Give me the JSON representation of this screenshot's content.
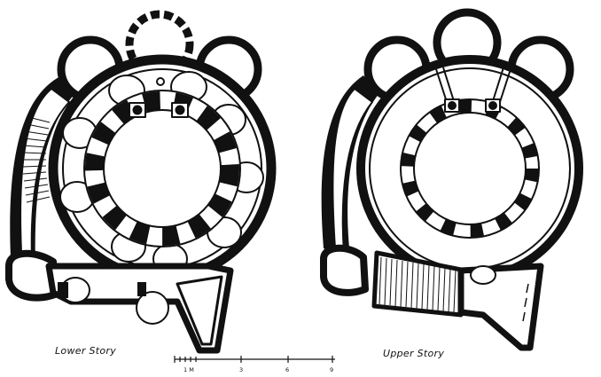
{
  "labels": {
    "lower": "Lower Story",
    "upper": "Upper Story"
  },
  "scale": {
    "ticks": [
      "1 M",
      "3",
      "6",
      "9"
    ]
  },
  "colors": {
    "ink": "#111111",
    "paper": "#ffffff"
  }
}
